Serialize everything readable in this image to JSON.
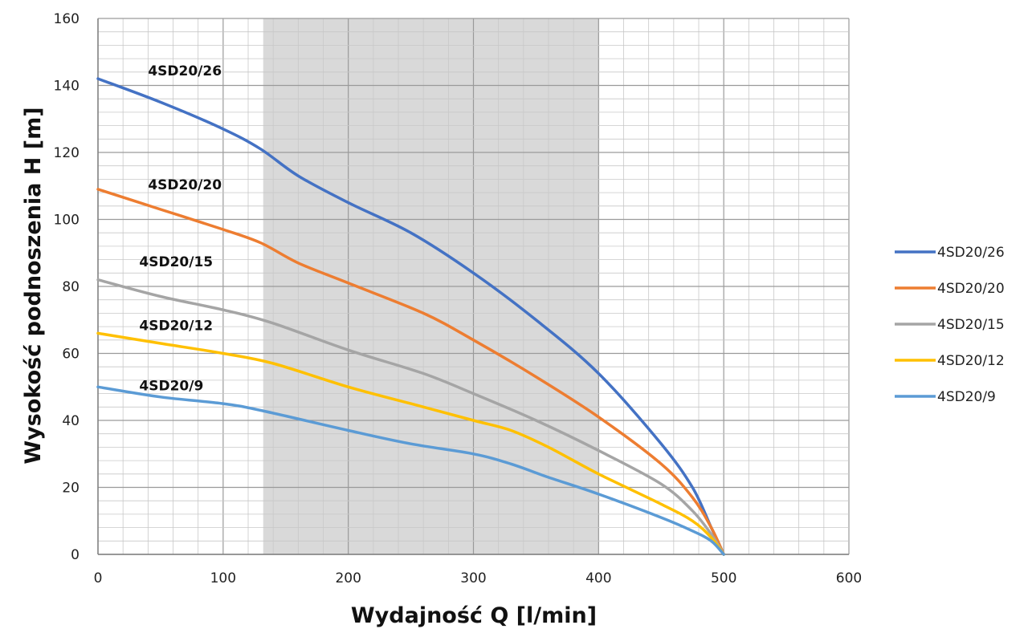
{
  "chart_data": {
    "type": "line",
    "title": "",
    "xlabel": "Wydajność Q [l/min]",
    "ylabel": "Wysokość podnoszenia H [m]",
    "xlim": [
      0,
      600
    ],
    "ylim": [
      0,
      160
    ],
    "x_ticks": [
      "0",
      "100",
      "200",
      "300",
      "400",
      "500",
      "600"
    ],
    "y_ticks": [
      "0",
      "20",
      "40",
      "60",
      "80",
      "100",
      "120",
      "140",
      "160"
    ],
    "grid": true,
    "legend_position": "right",
    "highlight_band": {
      "x_from": 132,
      "x_to": 400,
      "color": "#d9d9d9"
    },
    "series": [
      {
        "name": "4SD20/26",
        "color": "#4472c4",
        "points": [
          [
            0,
            142
          ],
          [
            50,
            135
          ],
          [
            100,
            127
          ],
          [
            130,
            121
          ],
          [
            160,
            113
          ],
          [
            200,
            105
          ],
          [
            250,
            96
          ],
          [
            300,
            84
          ],
          [
            350,
            70
          ],
          [
            400,
            54
          ],
          [
            450,
            33
          ],
          [
            475,
            20
          ],
          [
            490,
            8
          ],
          [
            500,
            0
          ]
        ]
      },
      {
        "name": "4SD20/20",
        "color": "#ed7d31",
        "points": [
          [
            0,
            109
          ],
          [
            50,
            103
          ],
          [
            100,
            97
          ],
          [
            130,
            93
          ],
          [
            160,
            87
          ],
          [
            200,
            81
          ],
          [
            260,
            72
          ],
          [
            300,
            64
          ],
          [
            350,
            53
          ],
          [
            400,
            41
          ],
          [
            450,
            27
          ],
          [
            475,
            17
          ],
          [
            490,
            8
          ],
          [
            500,
            0
          ]
        ]
      },
      {
        "name": "4SD20/15",
        "color": "#a5a5a5",
        "points": [
          [
            0,
            82
          ],
          [
            50,
            77
          ],
          [
            100,
            73
          ],
          [
            140,
            69
          ],
          [
            200,
            61
          ],
          [
            260,
            54
          ],
          [
            300,
            48
          ],
          [
            350,
            40
          ],
          [
            400,
            31
          ],
          [
            450,
            21
          ],
          [
            475,
            13
          ],
          [
            490,
            6
          ],
          [
            500,
            0
          ]
        ]
      },
      {
        "name": "4SD20/12",
        "color": "#ffc000",
        "points": [
          [
            0,
            66
          ],
          [
            50,
            63
          ],
          [
            100,
            60
          ],
          [
            140,
            57
          ],
          [
            200,
            50
          ],
          [
            250,
            45
          ],
          [
            300,
            40
          ],
          [
            330,
            37
          ],
          [
            360,
            32
          ],
          [
            400,
            24
          ],
          [
            450,
            15
          ],
          [
            475,
            10
          ],
          [
            490,
            5
          ],
          [
            500,
            0
          ]
        ]
      },
      {
        "name": "4SD20/9",
        "color": "#5b9bd5",
        "points": [
          [
            0,
            50
          ],
          [
            50,
            47
          ],
          [
            100,
            45
          ],
          [
            130,
            43
          ],
          [
            200,
            37
          ],
          [
            250,
            33
          ],
          [
            300,
            30
          ],
          [
            330,
            27
          ],
          [
            360,
            23
          ],
          [
            400,
            18
          ],
          [
            450,
            11
          ],
          [
            475,
            7
          ],
          [
            490,
            4
          ],
          [
            500,
            0
          ]
        ]
      }
    ],
    "curve_labels": [
      {
        "text": "4SD20/26",
        "x": 40,
        "y": 143
      },
      {
        "text": "4SD20/20",
        "x": 40,
        "y": 109
      },
      {
        "text": "4SD20/15",
        "x": 33,
        "y": 86
      },
      {
        "text": "4SD20/12",
        "x": 33,
        "y": 67
      },
      {
        "text": "4SD20/9",
        "x": 33,
        "y": 49
      }
    ]
  }
}
